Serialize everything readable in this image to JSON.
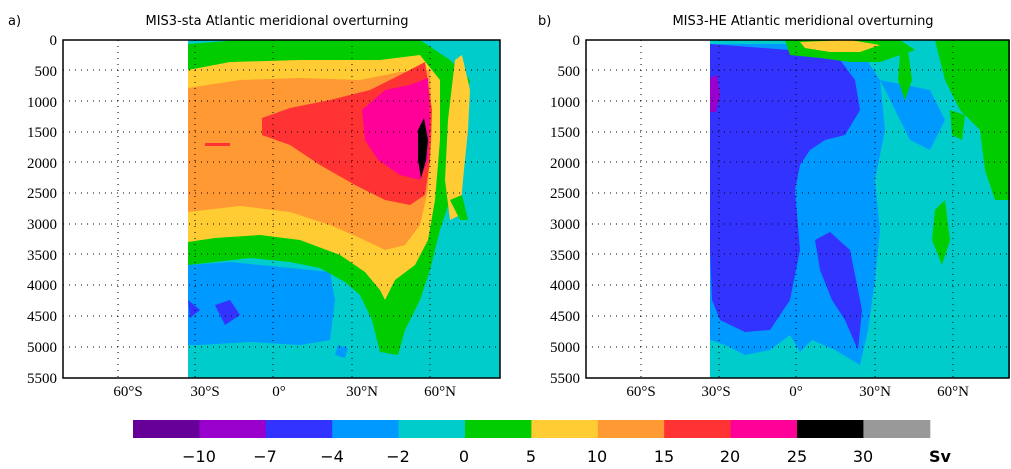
{
  "chart_data": [
    {
      "type": "heatmap",
      "panel_label": "a)",
      "title": "MIS3-sta Atlantic meridional overturning",
      "y_ticks": [
        "0",
        "500",
        "1000",
        "1500",
        "2000",
        "2500",
        "3000",
        "3500",
        "4000",
        "4500",
        "5000",
        "5500"
      ],
      "x_ticks": [
        "60°S",
        "30°S",
        "0°",
        "30°N",
        "60°N"
      ],
      "ylim": [
        5500,
        0
      ],
      "xlim": [
        -85,
        85
      ]
    },
    {
      "type": "heatmap",
      "panel_label": "b)",
      "title": "MIS3-HE Atlantic meridional overturning",
      "y_ticks": [
        "0",
        "500",
        "1000",
        "1500",
        "2000",
        "2500",
        "3000",
        "3500",
        "4000",
        "4500",
        "5000",
        "5500"
      ],
      "x_ticks": [
        "60°S",
        "30°S",
        "0°",
        "30°N",
        "60°N"
      ],
      "ylim": [
        5500,
        0
      ],
      "xlim": [
        -85,
        85
      ]
    }
  ],
  "colorbar": {
    "unit": "Sv",
    "labels": [
      "−10",
      "−7",
      "−4",
      "−2",
      "0",
      "5",
      "10",
      "15",
      "20",
      "25",
      "30"
    ],
    "colors": [
      "#660099",
      "#9900cc",
      "#3333ff",
      "#0099ff",
      "#00cccc",
      "#00cc00",
      "#ffcc33",
      "#ff9933",
      "#ff3333",
      "#ff0099",
      "#000000",
      "#999999"
    ]
  }
}
